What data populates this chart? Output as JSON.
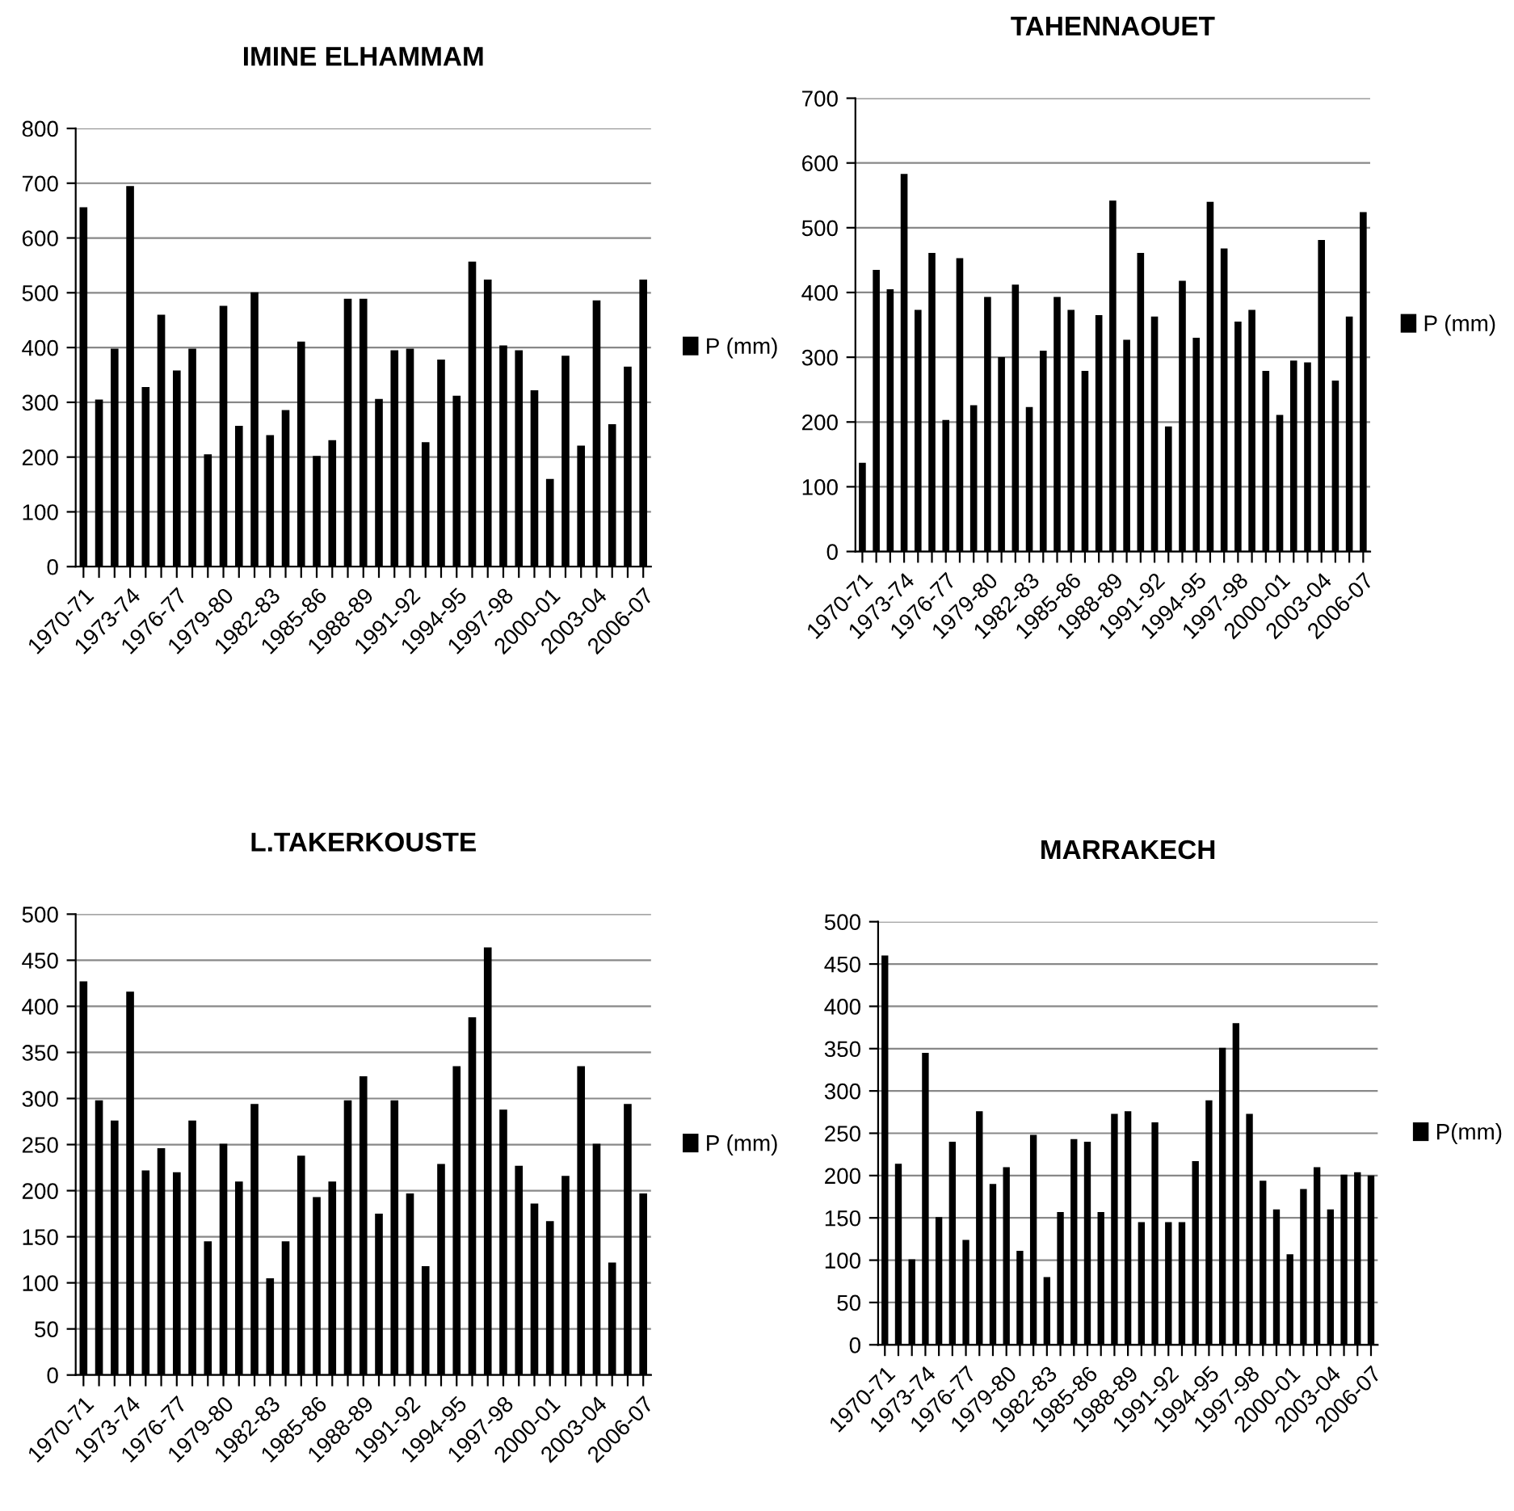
{
  "chart_data": [
    {
      "type": "bar",
      "title": "IMINE ELHAMMAM",
      "categories": [
        "1970-71",
        null,
        null,
        "1973-74",
        null,
        null,
        "1976-77",
        null,
        null,
        "1979-80",
        null,
        null,
        "1982-83",
        null,
        null,
        "1985-86",
        null,
        null,
        "1988-89",
        null,
        null,
        "1991-92",
        null,
        null,
        "1994-95",
        null,
        null,
        "1997-98",
        null,
        null,
        "2000-01",
        null,
        null,
        "2003-04",
        null,
        null,
        "2006-07"
      ],
      "series": [
        {
          "name": "P (mm)",
          "color": "#000000",
          "values": [
            656,
            305,
            398,
            695,
            328,
            460,
            358,
            398,
            205,
            476,
            257,
            501,
            240,
            286,
            411,
            202,
            231,
            489,
            489,
            306,
            395,
            398,
            227,
            378,
            312,
            557,
            524,
            404,
            395,
            322,
            160,
            385,
            221,
            486,
            260,
            365,
            524
          ]
        }
      ],
      "ylim": [
        0,
        800
      ],
      "yticks": [
        0,
        100,
        200,
        300,
        400,
        500,
        600,
        700,
        800
      ],
      "grid": "y",
      "legend": "right"
    },
    {
      "type": "bar",
      "title": "TAHENNAOUET",
      "categories": [
        "1970-71",
        null,
        null,
        "1973-74",
        null,
        null,
        "1976-77",
        null,
        null,
        "1979-80",
        null,
        null,
        "1982-83",
        null,
        null,
        "1985-86",
        null,
        null,
        "1988-89",
        null,
        null,
        "1991-92",
        null,
        null,
        "1994-95",
        null,
        null,
        "1997-98",
        null,
        null,
        "2000-01",
        null,
        null,
        "2003-04",
        null,
        null,
        "2006-07"
      ],
      "series": [
        {
          "name": "P (mm)",
          "color": "#000000",
          "values": [
            137,
            435,
            405,
            583,
            373,
            461,
            203,
            453,
            226,
            393,
            300,
            412,
            223,
            310,
            393,
            373,
            279,
            365,
            542,
            327,
            461,
            363,
            193,
            418,
            330,
            540,
            468,
            355,
            373,
            279,
            211,
            295,
            292,
            481,
            264,
            363,
            524
          ]
        }
      ],
      "ylim": [
        0,
        700
      ],
      "yticks": [
        0,
        100,
        200,
        300,
        400,
        500,
        600,
        700
      ],
      "grid": "y",
      "legend": "right"
    },
    {
      "type": "bar",
      "title": "L.TAKERKOUSTE",
      "categories": [
        "1970-71",
        null,
        null,
        "1973-74",
        null,
        null,
        "1976-77",
        null,
        null,
        "1979-80",
        null,
        null,
        "1982-83",
        null,
        null,
        "1985-86",
        null,
        null,
        "1988-89",
        null,
        null,
        "1991-92",
        null,
        null,
        "1994-95",
        null,
        null,
        "1997-98",
        null,
        null,
        "2000-01",
        null,
        null,
        "2003-04",
        null,
        null,
        "2006-07"
      ],
      "series": [
        {
          "name": "P (mm)",
          "color": "#000000",
          "values": [
            427,
            298,
            276,
            416,
            222,
            246,
            220,
            276,
            145,
            251,
            210,
            294,
            105,
            145,
            238,
            193,
            210,
            298,
            324,
            175,
            298,
            197,
            118,
            229,
            335,
            388,
            464,
            288,
            227,
            186,
            167,
            216,
            335,
            251,
            122,
            294,
            197
          ]
        }
      ],
      "ylim": [
        0,
        500
      ],
      "yticks": [
        0,
        50,
        100,
        150,
        200,
        250,
        300,
        350,
        400,
        450,
        500
      ],
      "grid": "y",
      "legend": "right"
    },
    {
      "type": "bar",
      "title": "MARRAKECH",
      "categories": [
        "1970-71",
        null,
        null,
        "1973-74",
        null,
        null,
        "1976-77",
        null,
        null,
        "1979-80",
        null,
        null,
        "1982-83",
        null,
        null,
        "1985-86",
        null,
        null,
        "1988-89",
        null,
        null,
        "1991-92",
        null,
        null,
        "1994-95",
        null,
        null,
        "1997-98",
        null,
        null,
        "2000-01",
        null,
        null,
        "2003-04",
        null,
        null,
        "2006-07"
      ],
      "series": [
        {
          "name": "P(mm)",
          "color": "#000000",
          "values": [
            460,
            214,
            101,
            345,
            151,
            240,
            124,
            276,
            190,
            210,
            111,
            248,
            80,
            157,
            243,
            240,
            157,
            273,
            276,
            145,
            263,
            145,
            145,
            217,
            289,
            351,
            380,
            273,
            194,
            160,
            107,
            184,
            210,
            160,
            201,
            204,
            200
          ]
        }
      ],
      "ylim": [
        0,
        500
      ],
      "yticks": [
        0,
        50,
        100,
        150,
        200,
        250,
        300,
        350,
        400,
        450,
        500
      ],
      "grid": "y",
      "legend": "right"
    }
  ]
}
